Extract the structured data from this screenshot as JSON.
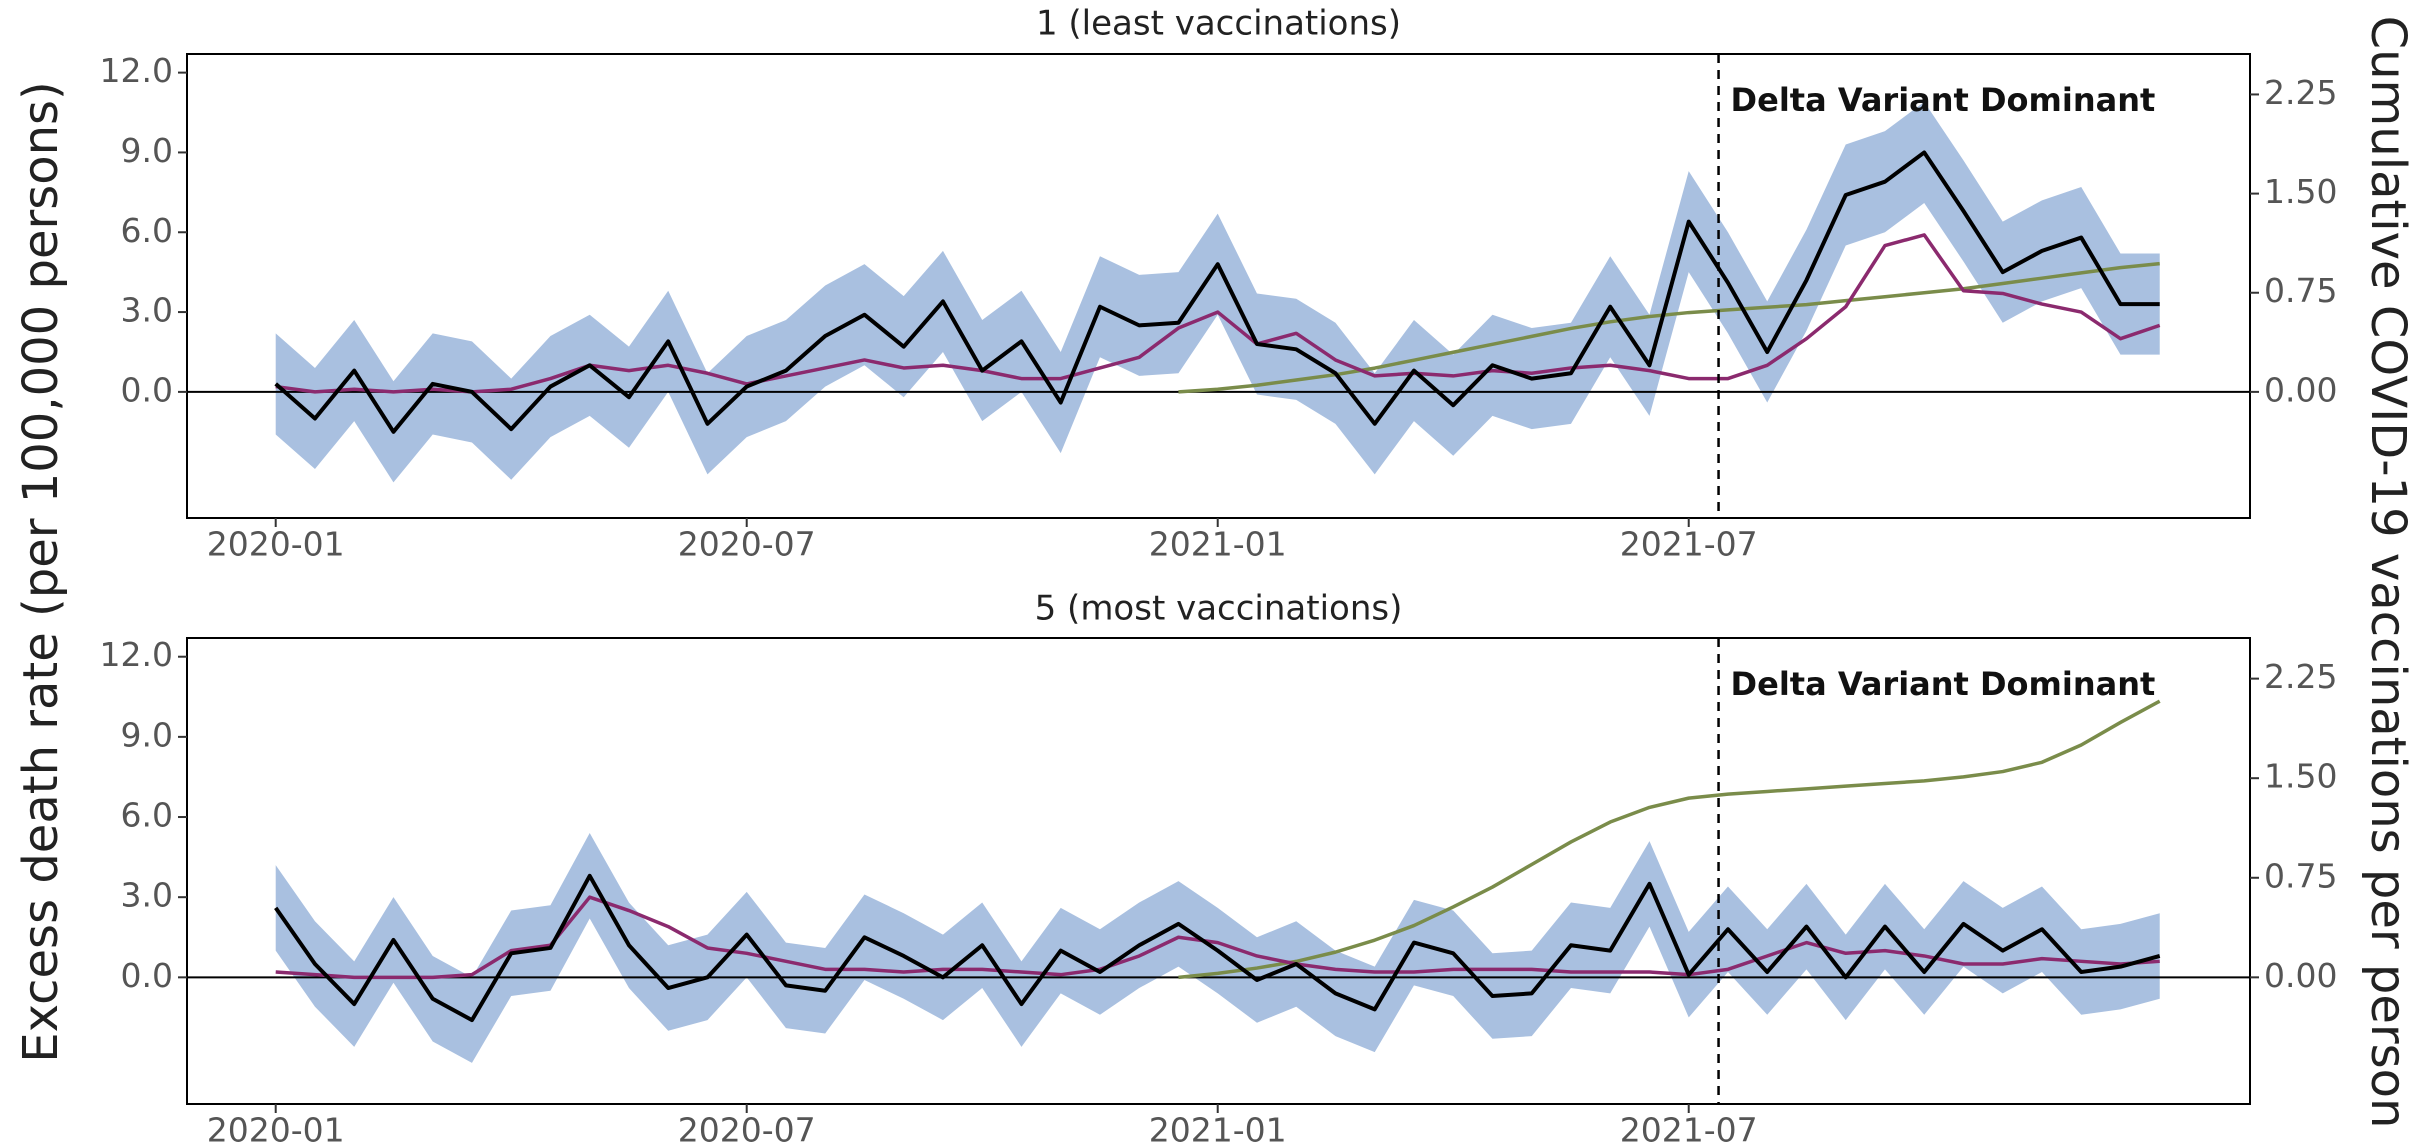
{
  "ylabel": "Excess death rate (per 100,000 persons)",
  "y2label": "Cumulative COVID-19 vaccinations per person",
  "chart_data": [
    {
      "type": "line",
      "title": "1 (least vaccinations)",
      "x": [
        0,
        0.5,
        1,
        1.5,
        2,
        2.5,
        3,
        3.5,
        4,
        4.5,
        5,
        5.5,
        6,
        6.5,
        7,
        7.5,
        8,
        8.5,
        9,
        9.5,
        10,
        10.5,
        11,
        11.5,
        12,
        12.5,
        13,
        13.5,
        14,
        14.5,
        15,
        15.5,
        16,
        16.5,
        17,
        17.5,
        18,
        18.5,
        19,
        19.5,
        20,
        20.5,
        21,
        21.5,
        22,
        22.5,
        23,
        23.5,
        24
      ],
      "xlim": [
        -1.13,
        25.15
      ],
      "xticks": [
        {
          "value": 0,
          "label": "2020-01"
        },
        {
          "value": 6,
          "label": "2020-07"
        },
        {
          "value": 12,
          "label": "2021-01"
        },
        {
          "value": 18,
          "label": "2021-07"
        }
      ],
      "ylim": [
        -4.74,
        12.7
      ],
      "yticks": [
        {
          "value": 0,
          "label": "0.0"
        },
        {
          "value": 3,
          "label": "3.0"
        },
        {
          "value": 6,
          "label": "6.0"
        },
        {
          "value": 9,
          "label": "9.0"
        },
        {
          "value": 12,
          "label": "12.0"
        }
      ],
      "y2lim": [
        -0.954,
        2.556
      ],
      "y2ticks": [
        {
          "value": 0,
          "label": "0.00"
        },
        {
          "value": 0.75,
          "label": "0.75"
        },
        {
          "value": 1.5,
          "label": "1.50"
        },
        {
          "value": 2.25,
          "label": "2.25"
        }
      ],
      "annotation": {
        "text": "Delta Variant Dominant",
        "x": 18.38
      },
      "band": {
        "color": "#a9c0e0",
        "upper": [
          2.2,
          0.9,
          2.7,
          0.4,
          2.2,
          1.9,
          0.5,
          2.1,
          2.9,
          1.7,
          3.8,
          0.7,
          2.1,
          2.7,
          4.0,
          4.8,
          3.6,
          5.3,
          2.7,
          3.8,
          1.5,
          5.1,
          4.4,
          4.5,
          6.7,
          3.7,
          3.5,
          2.6,
          0.7,
          2.7,
          1.4,
          2.9,
          2.4,
          2.6,
          5.1,
          2.9,
          8.3,
          6.0,
          3.4,
          6.1,
          9.3,
          9.8,
          10.9,
          8.7,
          6.4,
          7.2,
          7.7,
          5.2,
          5.2
        ],
        "lower": [
          -1.6,
          -2.9,
          -1.1,
          -3.4,
          -1.6,
          -1.9,
          -3.3,
          -1.7,
          -0.9,
          -2.1,
          0.0,
          -3.1,
          -1.7,
          -1.1,
          0.2,
          1.0,
          -0.2,
          1.5,
          -1.1,
          0.0,
          -2.3,
          1.3,
          0.6,
          0.7,
          2.9,
          -0.1,
          -0.3,
          -1.2,
          -3.1,
          -1.1,
          -2.4,
          -0.9,
          -1.4,
          -1.2,
          1.3,
          -0.9,
          4.5,
          2.2,
          -0.4,
          2.3,
          5.5,
          6.0,
          7.1,
          4.9,
          2.6,
          3.4,
          3.9,
          1.4,
          1.4
        ]
      },
      "series": [
        {
          "color": "#7a8c4a",
          "axis": "y2",
          "values": [
            null,
            null,
            null,
            null,
            null,
            null,
            null,
            null,
            null,
            null,
            null,
            null,
            null,
            null,
            null,
            null,
            null,
            null,
            null,
            null,
            null,
            null,
            null,
            0.0,
            0.02,
            0.05,
            0.09,
            0.13,
            0.18,
            0.24,
            0.3,
            0.36,
            0.42,
            0.48,
            0.53,
            0.57,
            0.6,
            0.62,
            0.64,
            0.66,
            0.69,
            0.72,
            0.75,
            0.78,
            0.82,
            0.86,
            0.9,
            0.94,
            0.97
          ]
        },
        {
          "color": "#8b2a6e",
          "values": [
            0.2,
            0.0,
            0.1,
            0.0,
            0.1,
            0.0,
            0.1,
            0.5,
            1.0,
            0.8,
            1.0,
            0.7,
            0.3,
            0.6,
            0.9,
            1.2,
            0.9,
            1.0,
            0.8,
            0.5,
            0.5,
            0.9,
            1.3,
            2.4,
            3.0,
            1.8,
            2.2,
            1.2,
            0.6,
            0.7,
            0.6,
            0.8,
            0.7,
            0.9,
            1.0,
            0.8,
            0.5,
            0.5,
            1.0,
            2.0,
            3.2,
            5.5,
            5.9,
            3.8,
            3.7,
            3.3,
            3.0,
            2.0,
            2.5
          ]
        },
        {
          "color": "#000000",
          "values": [
            0.3,
            -1.0,
            0.8,
            -1.5,
            0.3,
            0.0,
            -1.4,
            0.2,
            1.0,
            -0.2,
            1.9,
            -1.2,
            0.2,
            0.8,
            2.1,
            2.9,
            1.7,
            3.4,
            0.8,
            1.9,
            -0.4,
            3.2,
            2.5,
            2.6,
            4.8,
            1.8,
            1.6,
            0.7,
            -1.2,
            0.8,
            -0.5,
            1.0,
            0.5,
            0.7,
            3.2,
            1.0,
            6.4,
            4.1,
            1.5,
            4.2,
            7.4,
            7.9,
            9.0,
            6.8,
            4.5,
            5.3,
            5.8,
            3.3,
            3.3
          ]
        }
      ]
    },
    {
      "type": "line",
      "title": "5 (most vaccinations)",
      "x": [
        0,
        0.5,
        1,
        1.5,
        2,
        2.5,
        3,
        3.5,
        4,
        4.5,
        5,
        5.5,
        6,
        6.5,
        7,
        7.5,
        8,
        8.5,
        9,
        9.5,
        10,
        10.5,
        11,
        11.5,
        12,
        12.5,
        13,
        13.5,
        14,
        14.5,
        15,
        15.5,
        16,
        16.5,
        17,
        17.5,
        18,
        18.5,
        19,
        19.5,
        20,
        20.5,
        21,
        21.5,
        22,
        22.5,
        23,
        23.5,
        24
      ],
      "xlim": [
        -1.13,
        25.15
      ],
      "xticks": [
        {
          "value": 0,
          "label": "2020-01"
        },
        {
          "value": 6,
          "label": "2020-07"
        },
        {
          "value": 12,
          "label": "2021-01"
        },
        {
          "value": 18,
          "label": "2021-07"
        }
      ],
      "ylim": [
        -4.74,
        12.7
      ],
      "yticks": [
        {
          "value": 0,
          "label": "0.0"
        },
        {
          "value": 3,
          "label": "3.0"
        },
        {
          "value": 6,
          "label": "6.0"
        },
        {
          "value": 9,
          "label": "9.0"
        },
        {
          "value": 12,
          "label": "12.0"
        }
      ],
      "y2lim": [
        -0.954,
        2.556
      ],
      "y2ticks": [
        {
          "value": 0,
          "label": "0.00"
        },
        {
          "value": 0.75,
          "label": "0.75"
        },
        {
          "value": 1.5,
          "label": "1.50"
        },
        {
          "value": 2.25,
          "label": "2.25"
        }
      ],
      "annotation": {
        "text": "Delta Variant Dominant",
        "x": 18.38
      },
      "band": {
        "color": "#a9c0e0",
        "upper": [
          4.2,
          2.1,
          0.6,
          3.0,
          0.8,
          0.0,
          2.5,
          2.7,
          5.4,
          2.8,
          1.2,
          1.6,
          3.2,
          1.3,
          1.1,
          3.1,
          2.4,
          1.6,
          2.8,
          0.6,
          2.6,
          1.8,
          2.8,
          3.6,
          2.6,
          1.5,
          2.1,
          1.0,
          0.4,
          2.9,
          2.5,
          0.9,
          1.0,
          2.8,
          2.6,
          5.1,
          1.7,
          3.4,
          1.8,
          3.5,
          1.6,
          3.5,
          1.8,
          3.6,
          2.6,
          3.4,
          1.8,
          2.0,
          2.4
        ],
        "lower": [
          1.0,
          -1.1,
          -2.6,
          -0.2,
          -2.4,
          -3.2,
          -0.7,
          -0.5,
          2.2,
          -0.4,
          -2.0,
          -1.6,
          0.0,
          -1.9,
          -2.1,
          -0.1,
          -0.8,
          -1.6,
          -0.4,
          -2.6,
          -0.6,
          -1.4,
          -0.4,
          0.4,
          -0.6,
          -1.7,
          -1.1,
          -2.2,
          -2.8,
          -0.3,
          -0.7,
          -2.3,
          -2.2,
          -0.4,
          -0.6,
          1.9,
          -1.5,
          0.2,
          -1.4,
          0.3,
          -1.6,
          0.3,
          -1.4,
          0.4,
          -0.6,
          0.2,
          -1.4,
          -1.2,
          -0.8
        ]
      },
      "series": [
        {
          "color": "#7a8c4a",
          "axis": "y2",
          "values": [
            null,
            null,
            null,
            null,
            null,
            null,
            null,
            null,
            null,
            null,
            null,
            null,
            null,
            null,
            null,
            null,
            null,
            null,
            null,
            null,
            null,
            null,
            null,
            0.0,
            0.03,
            0.07,
            0.12,
            0.19,
            0.28,
            0.39,
            0.53,
            0.68,
            0.85,
            1.02,
            1.17,
            1.28,
            1.35,
            1.38,
            1.4,
            1.42,
            1.44,
            1.46,
            1.48,
            1.51,
            1.55,
            1.62,
            1.75,
            1.92,
            2.08
          ]
        },
        {
          "color": "#8b2a6e",
          "values": [
            0.2,
            0.1,
            0.0,
            0.0,
            0.0,
            0.1,
            1.0,
            1.2,
            3.0,
            2.5,
            1.9,
            1.1,
            0.9,
            0.6,
            0.3,
            0.3,
            0.2,
            0.3,
            0.3,
            0.2,
            0.1,
            0.3,
            0.8,
            1.5,
            1.3,
            0.8,
            0.5,
            0.3,
            0.2,
            0.2,
            0.3,
            0.3,
            0.3,
            0.2,
            0.2,
            0.2,
            0.1,
            0.3,
            0.8,
            1.3,
            0.9,
            1.0,
            0.8,
            0.5,
            0.5,
            0.7,
            0.6,
            0.5,
            0.6
          ]
        },
        {
          "color": "#000000",
          "values": [
            2.6,
            0.5,
            -1.0,
            1.4,
            -0.8,
            -1.6,
            0.9,
            1.1,
            3.8,
            1.2,
            -0.4,
            0.0,
            1.6,
            -0.3,
            -0.5,
            1.5,
            0.8,
            0.0,
            1.2,
            -1.0,
            1.0,
            0.2,
            1.2,
            2.0,
            1.0,
            -0.1,
            0.5,
            -0.6,
            -1.2,
            1.3,
            0.9,
            -0.7,
            -0.6,
            1.2,
            1.0,
            3.5,
            0.1,
            1.8,
            0.2,
            1.9,
            0.0,
            1.9,
            0.2,
            2.0,
            1.0,
            1.8,
            0.2,
            0.4,
            0.8
          ]
        }
      ]
    }
  ]
}
